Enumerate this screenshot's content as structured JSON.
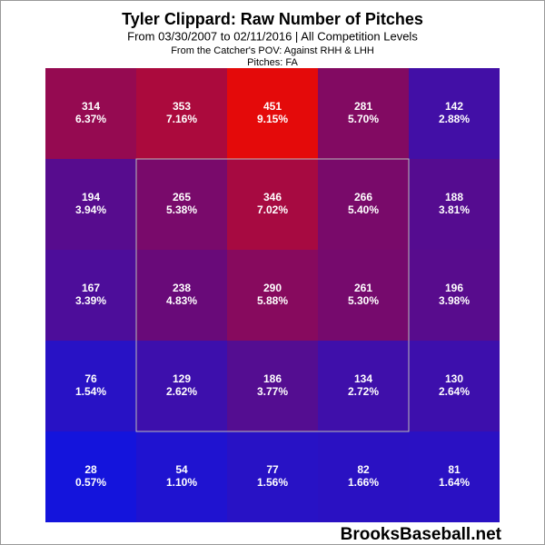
{
  "chart_data": {
    "type": "heatmap",
    "title": "Tyler Clippard: Raw Number of Pitches",
    "subtitle": "From 03/30/2007 to 02/11/2016 | All Competition Levels",
    "notes": [
      "From the Catcher's POV:  Against RHH & LHH",
      "Pitches:  FA"
    ],
    "values": [
      [
        314,
        353,
        451,
        281,
        142
      ],
      [
        194,
        265,
        346,
        266,
        188
      ],
      [
        167,
        238,
        290,
        261,
        196
      ],
      [
        76,
        129,
        186,
        134,
        130
      ],
      [
        28,
        54,
        77,
        82,
        81
      ]
    ],
    "percents": [
      [
        6.37,
        7.16,
        9.15,
        5.7,
        2.88
      ],
      [
        3.94,
        5.38,
        7.02,
        5.4,
        3.81
      ],
      [
        3.39,
        4.83,
        5.88,
        5.3,
        3.98
      ],
      [
        1.54,
        2.62,
        3.77,
        2.72,
        2.64
      ],
      [
        0.57,
        1.1,
        1.56,
        1.66,
        1.64
      ]
    ],
    "percent_labels": [
      [
        "6.37%",
        "7.16%",
        "9.15%",
        "5.70%",
        "2.88%"
      ],
      [
        "3.94%",
        "5.38%",
        "7.02%",
        "5.40%",
        "3.81%"
      ],
      [
        "3.39%",
        "4.83%",
        "5.88%",
        "5.30%",
        "3.98%"
      ],
      [
        "1.54%",
        "2.62%",
        "3.77%",
        "2.72%",
        "2.64%"
      ],
      [
        "0.57%",
        "1.10%",
        "1.56%",
        "1.66%",
        "1.64%"
      ]
    ],
    "colors": [
      "#1414dc",
      "#6a0a78",
      "#e40a0a"
    ]
  },
  "watermark": "BrooksBaseball.net"
}
